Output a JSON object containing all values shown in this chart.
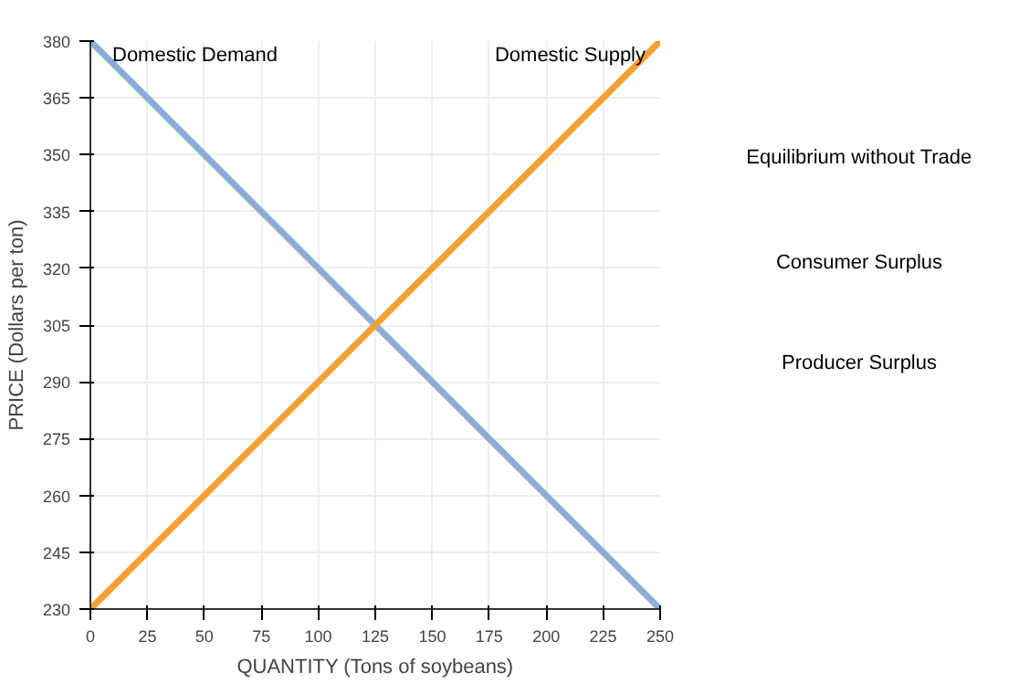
{
  "chart_data": {
    "type": "line",
    "xlabel": "QUANTITY (Tons of soybeans)",
    "ylabel": "PRICE (Dollars per ton)",
    "x": [
      0,
      250
    ],
    "series": [
      {
        "name": "Domestic Demand",
        "color": "#8eadd4",
        "values": [
          380,
          230
        ]
      },
      {
        "name": "Domestic Supply",
        "color": "#f5a033",
        "values": [
          230,
          380
        ]
      }
    ],
    "xlim": [
      0,
      250
    ],
    "xticks": [
      0,
      25,
      50,
      75,
      100,
      125,
      150,
      175,
      200,
      225,
      250
    ],
    "ylim": [
      230,
      380
    ],
    "yticks": [
      230,
      245,
      260,
      275,
      290,
      305,
      320,
      335,
      350,
      365,
      380
    ],
    "grid": true,
    "marker": "none",
    "line_style": "solid",
    "legend": false,
    "annotations": [
      "Equilibrium without Trade",
      "Consumer Surplus",
      "Producer Surplus"
    ]
  }
}
